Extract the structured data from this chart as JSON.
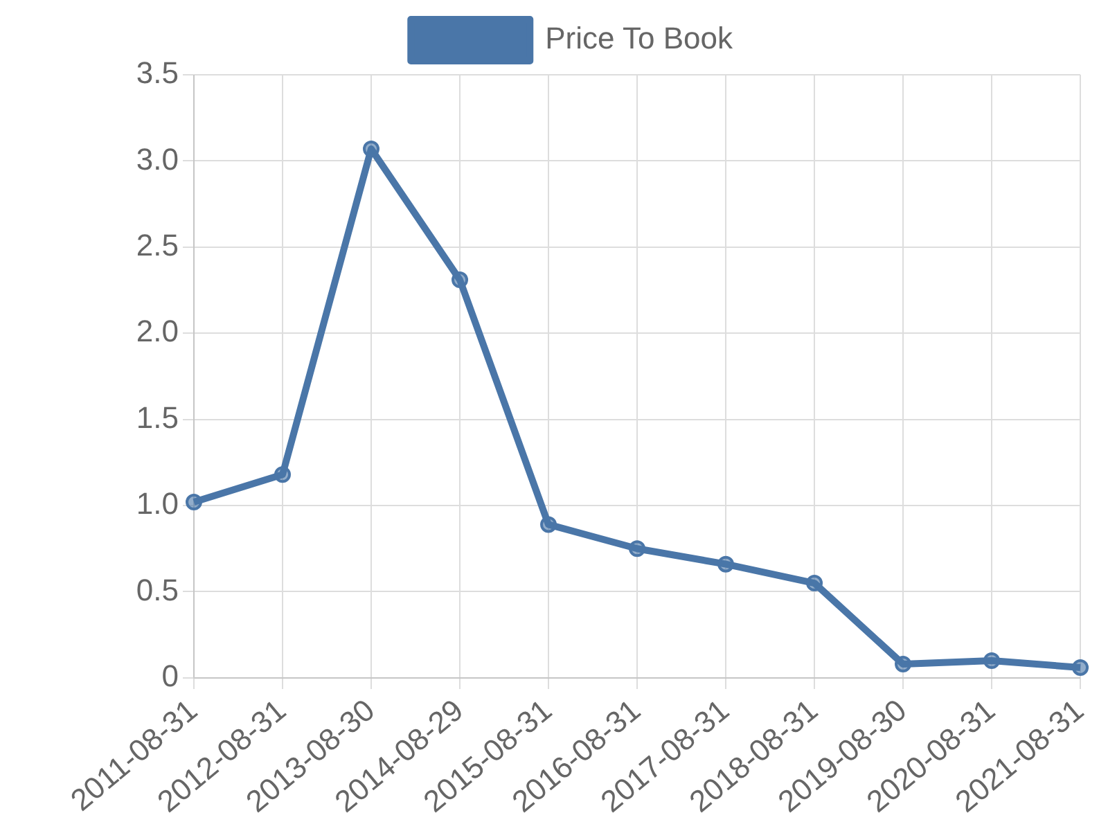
{
  "chart_data": {
    "type": "line",
    "categories": [
      "2011-08-31",
      "2012-08-31",
      "2013-08-30",
      "2014-08-29",
      "2015-08-31",
      "2016-08-31",
      "2017-08-31",
      "2018-08-31",
      "2019-08-30",
      "2020-08-31",
      "2021-08-31"
    ],
    "series": [
      {
        "name": "Price To Book",
        "color": "#4a76a8",
        "values": [
          1.02,
          1.18,
          3.07,
          2.31,
          0.89,
          0.75,
          0.66,
          0.55,
          0.08,
          0.1,
          0.06
        ]
      }
    ],
    "ylim": [
      0,
      3.5
    ],
    "yticks": [
      0,
      0.5,
      {
        "value": 1,
        "label": "1.0"
      },
      1.5,
      {
        "value": 2,
        "label": "2.0"
      },
      2.5,
      {
        "value": 3,
        "label": "3.0"
      },
      3.5
    ],
    "grid": true,
    "legend": "top",
    "marker": "circle",
    "line_style": "solid"
  }
}
